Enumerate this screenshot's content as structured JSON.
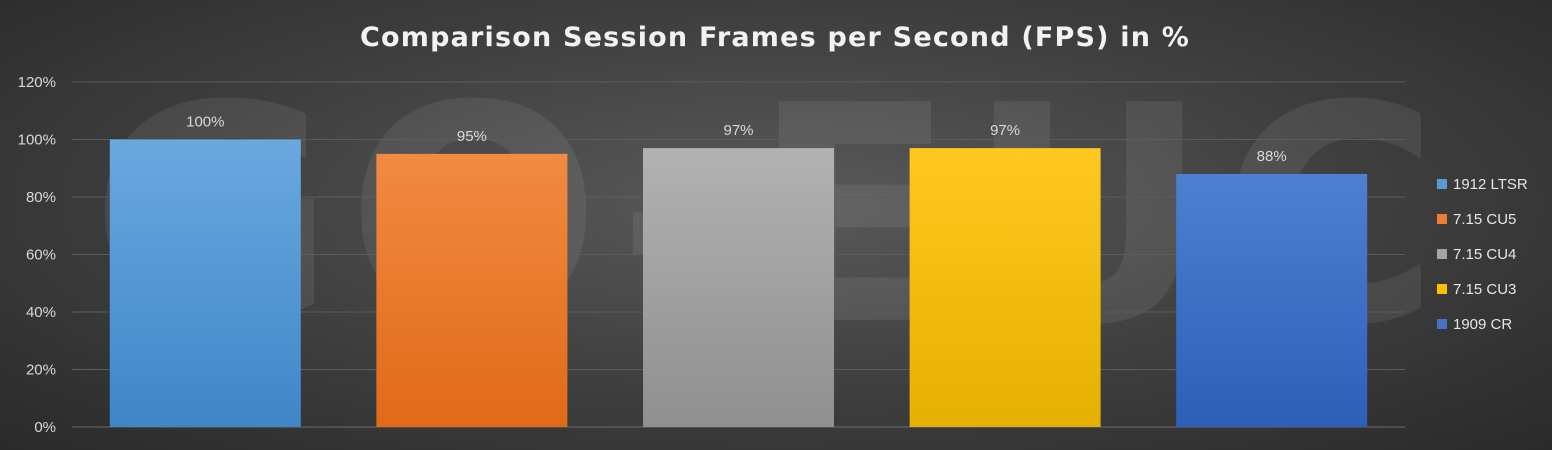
{
  "watermark": "GO-EUC",
  "chart_data": {
    "type": "bar",
    "title": "Comparison Session Frames per Second (FPS) in %",
    "xlabel": "",
    "ylabel": "",
    "ylim": [
      0,
      120
    ],
    "yticks": [
      0,
      20,
      40,
      60,
      80,
      100,
      120
    ],
    "ytick_labels": [
      "0%",
      "20%",
      "40%",
      "60%",
      "80%",
      "100%",
      "120%"
    ],
    "grid": true,
    "legend_position": "right",
    "series": [
      {
        "name": "1912 LTSR",
        "value": 100,
        "label": "100%",
        "color": "#5b9bd5"
      },
      {
        "name": "7.15 CU5",
        "value": 95,
        "label": "95%",
        "color": "#ed7d31"
      },
      {
        "name": "7.15 CU4",
        "value": 97,
        "label": "97%",
        "color": "#a5a5a5"
      },
      {
        "name": "7.15 CU3",
        "value": 97,
        "label": "97%",
        "color": "#ffc000"
      },
      {
        "name": "1909 CR",
        "value": 88,
        "label": "88%",
        "color": "#4472c4"
      }
    ]
  }
}
